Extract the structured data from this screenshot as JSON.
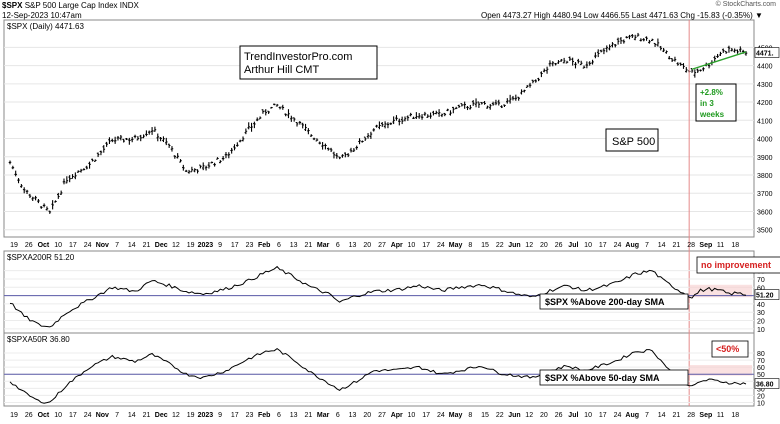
{
  "header": {
    "symbol": "$SPX",
    "name": "S&P 500 Large Cap Index",
    "exchange": "INDX",
    "date": "12-Sep-2023 10:47am",
    "ohlc": "Open 4473.27  High 4480.94  Low 4466.55  Last 4471.63  Chg -15.83 (-0.35%) ▼",
    "watermark": "© StockCharts.com"
  },
  "chart_data": [
    {
      "type": "line",
      "panel": "price",
      "legend": "$SPX (Daily) 4471.63",
      "last_label": "4471.",
      "y_ticks": [
        3500,
        3600,
        3700,
        3800,
        3900,
        4000,
        4100,
        4200,
        4300,
        4400,
        4500
      ],
      "ylim": [
        3460,
        4650
      ],
      "x_ticks": [
        "19",
        "26",
        "Oct",
        "10",
        "17",
        "24",
        "Nov",
        "7",
        "14",
        "21",
        "Dec",
        "12",
        "19",
        "2023",
        "9",
        "17",
        "23",
        "Feb",
        "6",
        "13",
        "21",
        "Mar",
        "6",
        "13",
        "20",
        "27",
        "Apr",
        "10",
        "17",
        "24",
        "May",
        "8",
        "15",
        "22",
        "Jun",
        "12",
        "20",
        "26",
        "Jul",
        "10",
        "17",
        "24",
        "Aug",
        "7",
        "14",
        "21",
        "28",
        "Sep",
        "11",
        "18"
      ],
      "keypoints": [
        [
          0,
          3870
        ],
        [
          5,
          3720
        ],
        [
          10,
          3650
        ],
        [
          14,
          3590
        ],
        [
          20,
          3780
        ],
        [
          28,
          3860
        ],
        [
          36,
          3990
        ],
        [
          44,
          4000
        ],
        [
          50,
          4050
        ],
        [
          56,
          3960
        ],
        [
          62,
          3820
        ],
        [
          68,
          3840
        ],
        [
          76,
          3900
        ],
        [
          84,
          4050
        ],
        [
          90,
          4150
        ],
        [
          94,
          4180
        ],
        [
          100,
          4110
        ],
        [
          106,
          4020
        ],
        [
          112,
          3950
        ],
        [
          116,
          3880
        ],
        [
          122,
          3960
        ],
        [
          128,
          4050
        ],
        [
          136,
          4100
        ],
        [
          144,
          4130
        ],
        [
          152,
          4130
        ],
        [
          158,
          4170
        ],
        [
          166,
          4190
        ],
        [
          172,
          4180
        ],
        [
          178,
          4220
        ],
        [
          184,
          4300
        ],
        [
          190,
          4400
        ],
        [
          196,
          4430
        ],
        [
          202,
          4400
        ],
        [
          208,
          4470
        ],
        [
          214,
          4530
        ],
        [
          220,
          4560
        ],
        [
          226,
          4540
        ],
        [
          230,
          4480
        ],
        [
          236,
          4400
        ],
        [
          240,
          4360
        ],
        [
          243,
          4380
        ],
        [
          246,
          4410
        ],
        [
          250,
          4470
        ],
        [
          253,
          4490
        ],
        [
          256,
          4480
        ],
        [
          259,
          4472
        ]
      ],
      "annotations": {
        "credit_1": "TrendInvestorPro.com",
        "credit_2": "Arthur Hill CMT",
        "series_label": "S&P 500",
        "gain_1": "+2.8%",
        "gain_2": "in 3",
        "gain_3": "weeks"
      }
    },
    {
      "type": "line",
      "panel": "indicator",
      "legend": "$SPXA200R 51.20",
      "last_label": "51.20",
      "series_label": "$SPX %Above 200-day SMA",
      "note": "no improvement",
      "reference_line": 50,
      "y_ticks": [
        10,
        20,
        30,
        40,
        50,
        60,
        70,
        80
      ],
      "ylim": [
        5,
        88
      ],
      "keypoints": [
        [
          0,
          42
        ],
        [
          5,
          25
        ],
        [
          10,
          15
        ],
        [
          14,
          12
        ],
        [
          20,
          30
        ],
        [
          28,
          45
        ],
        [
          36,
          60
        ],
        [
          44,
          55
        ],
        [
          50,
          68
        ],
        [
          56,
          62
        ],
        [
          62,
          55
        ],
        [
          68,
          52
        ],
        [
          76,
          58
        ],
        [
          84,
          68
        ],
        [
          90,
          78
        ],
        [
          94,
          83
        ],
        [
          100,
          72
        ],
        [
          106,
          60
        ],
        [
          112,
          52
        ],
        [
          116,
          42
        ],
        [
          122,
          50
        ],
        [
          128,
          55
        ],
        [
          136,
          57
        ],
        [
          144,
          62
        ],
        [
          152,
          56
        ],
        [
          158,
          60
        ],
        [
          166,
          63
        ],
        [
          172,
          58
        ],
        [
          178,
          52
        ],
        [
          184,
          48
        ],
        [
          190,
          56
        ],
        [
          196,
          62
        ],
        [
          202,
          56
        ],
        [
          208,
          60
        ],
        [
          214,
          66
        ],
        [
          220,
          76
        ],
        [
          226,
          80
        ],
        [
          230,
          68
        ],
        [
          236,
          55
        ],
        [
          240,
          48
        ],
        [
          243,
          56
        ],
        [
          246,
          58
        ],
        [
          250,
          56
        ],
        [
          253,
          52
        ],
        [
          256,
          53
        ],
        [
          259,
          51
        ]
      ]
    },
    {
      "type": "line",
      "panel": "indicator",
      "legend": "$SPXA50R 36.80",
      "last_label": "36.80",
      "series_label": "$SPX %Above 50-day SMA",
      "note": "<50%",
      "reference_line": 50,
      "y_ticks": [
        10,
        20,
        30,
        40,
        50,
        60,
        70,
        80
      ],
      "ylim": [
        5,
        90
      ],
      "keypoints": [
        [
          0,
          40
        ],
        [
          5,
          24
        ],
        [
          10,
          12
        ],
        [
          14,
          10
        ],
        [
          20,
          35
        ],
        [
          28,
          60
        ],
        [
          36,
          75
        ],
        [
          44,
          68
        ],
        [
          50,
          78
        ],
        [
          56,
          65
        ],
        [
          62,
          50
        ],
        [
          68,
          45
        ],
        [
          76,
          55
        ],
        [
          84,
          72
        ],
        [
          90,
          82
        ],
        [
          94,
          85
        ],
        [
          100,
          70
        ],
        [
          106,
          52
        ],
        [
          112,
          38
        ],
        [
          116,
          28
        ],
        [
          122,
          40
        ],
        [
          128,
          55
        ],
        [
          136,
          56
        ],
        [
          144,
          60
        ],
        [
          152,
          50
        ],
        [
          158,
          55
        ],
        [
          166,
          62
        ],
        [
          172,
          52
        ],
        [
          178,
          48
        ],
        [
          184,
          45
        ],
        [
          190,
          55
        ],
        [
          196,
          62
        ],
        [
          202,
          55
        ],
        [
          208,
          62
        ],
        [
          214,
          70
        ],
        [
          220,
          82
        ],
        [
          226,
          84
        ],
        [
          230,
          65
        ],
        [
          236,
          42
        ],
        [
          240,
          32
        ],
        [
          243,
          40
        ],
        [
          246,
          42
        ],
        [
          250,
          40
        ],
        [
          253,
          38
        ],
        [
          256,
          37
        ],
        [
          259,
          37
        ]
      ]
    }
  ]
}
